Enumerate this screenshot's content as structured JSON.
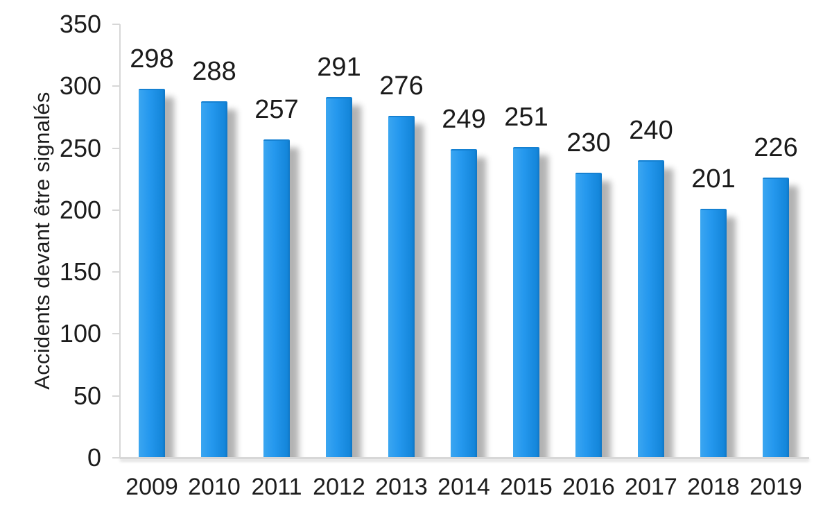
{
  "chart_data": {
    "type": "bar",
    "categories": [
      "2009",
      "2010",
      "2011",
      "2012",
      "2013",
      "2014",
      "2015",
      "2016",
      "2017",
      "2018",
      "2019"
    ],
    "values": [
      298,
      288,
      257,
      291,
      276,
      249,
      251,
      230,
      240,
      201,
      226
    ],
    "ylabel": "Accidents devant être signalés",
    "ylim": [
      0,
      350
    ],
    "yticks": [
      350,
      300,
      250,
      200,
      150,
      100,
      50,
      0
    ],
    "grid": false,
    "legend_position": "none",
    "data_labels": true,
    "colors": {
      "bar_light": "#3ba6f1",
      "bar_mid": "#2598ee",
      "bar_dark": "#0f76c4",
      "bar_top_edge": "#1581d2",
      "axis": "#d7d7d7",
      "text": "#1c1c1c"
    }
  }
}
